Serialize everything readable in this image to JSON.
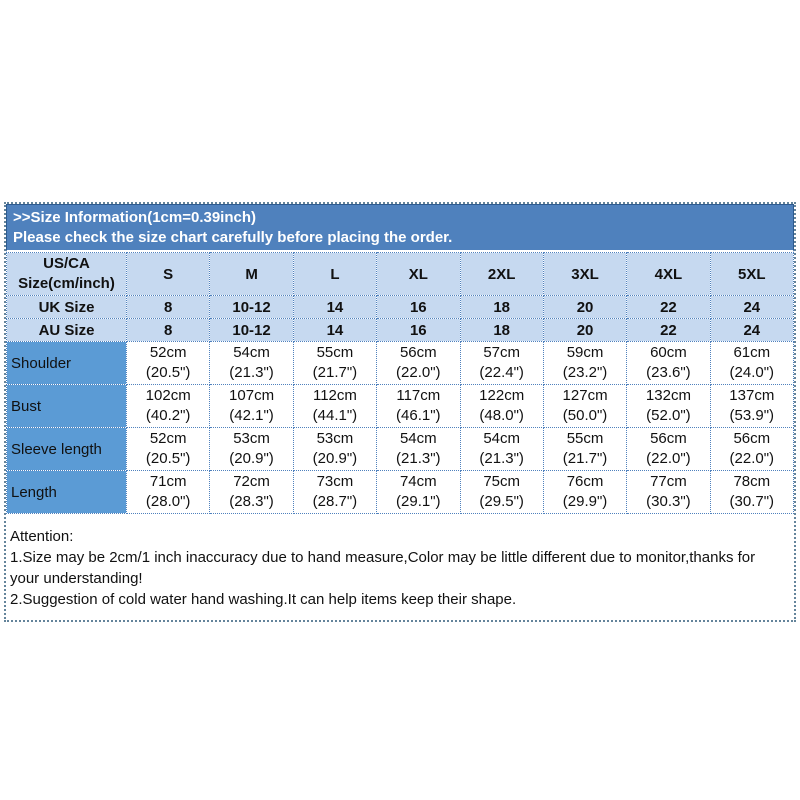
{
  "banner": {
    "line1": ">>Size Information(1cm=0.39inch)",
    "line2": "Please check the size chart carefully before placing the order."
  },
  "colors": {
    "banner_blue": "#4f81bd",
    "light_row_blue": "#c6d9f0",
    "label_column_blue": "#5b9bd5",
    "dotted_border_blue": "#4f81bd",
    "outer_dotted_border": "#64849b"
  },
  "chart_data": {
    "type": "table",
    "title": ">>Size Information(1cm=0.39inch)",
    "columns": [
      "US/CA Size(cm/inch)",
      "S",
      "M",
      "L",
      "XL",
      "2XL",
      "3XL",
      "4XL",
      "5XL"
    ],
    "rows": [
      [
        "UK Size",
        "8",
        "10-12",
        "14",
        "16",
        "18",
        "20",
        "22",
        "24"
      ],
      [
        "AU Size",
        "8",
        "10-12",
        "14",
        "16",
        "18",
        "20",
        "22",
        "24"
      ],
      [
        "Shoulder",
        "52cm (20.5\")",
        "54cm (21.3\")",
        "55cm (21.7\")",
        "56cm (22.0\")",
        "57cm (22.4\")",
        "59cm (23.2\")",
        "60cm (23.6\")",
        "61cm (24.0\")"
      ],
      [
        "Bust",
        "102cm (40.2\")",
        "107cm (42.1\")",
        "112cm (44.1\")",
        "117cm (46.1\")",
        "122cm (48.0\")",
        "127cm (50.0\")",
        "132cm (52.0\")",
        "137cm (53.9\")"
      ],
      [
        "Sleeve length",
        "52cm (20.5\")",
        "53cm (20.9\")",
        "53cm (20.9\")",
        "54cm (21.3\")",
        "54cm (21.3\")",
        "55cm (21.7\")",
        "56cm (22.0\")",
        "56cm (22.0\")"
      ],
      [
        "Length",
        "71cm (28.0\")",
        "72cm (28.3\")",
        "73cm (28.7\")",
        "74cm (29.1\")",
        "75cm (29.5\")",
        "76cm (29.9\")",
        "77cm (30.3\")",
        "78cm (30.7\")"
      ]
    ]
  },
  "table": {
    "corner_header": "US/CA\nSize(cm/inch)",
    "size_columns": [
      "S",
      "M",
      "L",
      "XL",
      "2XL",
      "3XL",
      "4XL",
      "5XL"
    ],
    "uk_row": {
      "label": "UK Size",
      "values": [
        "8",
        "10-12",
        "14",
        "16",
        "18",
        "20",
        "22",
        "24"
      ]
    },
    "au_row": {
      "label": "AU Size",
      "values": [
        "8",
        "10-12",
        "14",
        "16",
        "18",
        "20",
        "22",
        "24"
      ]
    },
    "shoulder_row": {
      "label": "Shoulder",
      "values": [
        "52cm\n(20.5\")",
        "54cm\n(21.3\")",
        "55cm\n(21.7\")",
        "56cm\n(22.0\")",
        "57cm\n(22.4\")",
        "59cm\n(23.2\")",
        "60cm\n(23.6\")",
        "61cm\n(24.0\")"
      ]
    },
    "bust_row": {
      "label": "Bust",
      "values": [
        "102cm\n(40.2\")",
        "107cm\n(42.1\")",
        "112cm\n(44.1\")",
        "117cm\n(46.1\")",
        "122cm\n(48.0\")",
        "127cm\n(50.0\")",
        "132cm\n(52.0\")",
        "137cm\n(53.9\")"
      ]
    },
    "sleeve_row": {
      "label": "Sleeve length",
      "values": [
        "52cm\n(20.5\")",
        "53cm\n(20.9\")",
        "53cm\n(20.9\")",
        "54cm\n(21.3\")",
        "54cm\n(21.3\")",
        "55cm\n(21.7\")",
        "56cm\n(22.0\")",
        "56cm\n(22.0\")"
      ]
    },
    "length_row": {
      "label": "Length",
      "values": [
        "71cm\n(28.0\")",
        "72cm\n(28.3\")",
        "73cm\n(28.7\")",
        "74cm\n(29.1\")",
        "75cm\n(29.5\")",
        "76cm\n(29.9\")",
        "77cm\n(30.3\")",
        "78cm\n(30.7\")"
      ]
    }
  },
  "attention": {
    "title": "Attention:",
    "note1": "1.Size may be 2cm/1 inch inaccuracy due to hand measure,Color may be little different due to monitor,thanks for your understanding!",
    "note2": "2.Suggestion of cold water hand washing.It can help items keep their shape."
  }
}
